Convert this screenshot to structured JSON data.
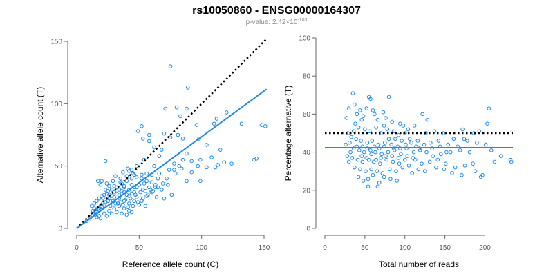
{
  "title": "rs10050860 - ENSG00000164307",
  "subtitle": {
    "prefix": "p-value: 2.42×10",
    "exponent": "-103"
  },
  "colors": {
    "points": "#1e88e5",
    "fit": "#1e88e5",
    "reference": "#000000"
  },
  "chart_data": [
    {
      "type": "scatter",
      "xlabel": "Reference allele count (C)",
      "ylabel": "Alternative allele count (T)",
      "xlim": [
        0,
        150
      ],
      "ylim": [
        0,
        150
      ],
      "xticks": [
        0,
        50,
        100,
        150
      ],
      "yticks": [
        0,
        50,
        100,
        150
      ],
      "grid": false,
      "legend": "none",
      "reference_line": {
        "style": "dotted",
        "slope": 1,
        "intercept": 0,
        "x_range": [
          0,
          152
        ]
      },
      "fit_line": {
        "style": "solid",
        "slope": 0.735,
        "intercept": 0,
        "x_range": [
          0,
          152
        ]
      },
      "points": [
        [
          75,
          130
        ],
        [
          89,
          113
        ],
        [
          80,
          97
        ],
        [
          71,
          96
        ],
        [
          88,
          96
        ],
        [
          83,
          90
        ],
        [
          120,
          93
        ],
        [
          112,
          88
        ],
        [
          110,
          84
        ],
        [
          52,
          82
        ],
        [
          58,
          75
        ],
        [
          70,
          76
        ],
        [
          81,
          75
        ],
        [
          96,
          83
        ],
        [
          132,
          84
        ],
        [
          148,
          83
        ],
        [
          151,
          82
        ],
        [
          49,
          78
        ],
        [
          53,
          72
        ],
        [
          75,
          73
        ],
        [
          85,
          72
        ],
        [
          98,
          72
        ],
        [
          104,
          67
        ],
        [
          58,
          70
        ],
        [
          62,
          65
        ],
        [
          68,
          63
        ],
        [
          88,
          60
        ],
        [
          115,
          63
        ],
        [
          108,
          57
        ],
        [
          144,
          56
        ],
        [
          142,
          55
        ],
        [
          85,
          55
        ],
        [
          92,
          54
        ],
        [
          62,
          50
        ],
        [
          78,
          52
        ],
        [
          82,
          50
        ],
        [
          99,
          55
        ],
        [
          111,
          49
        ],
        [
          113,
          51
        ],
        [
          124,
          52
        ],
        [
          74,
          47
        ],
        [
          79,
          44
        ],
        [
          72,
          40
        ],
        [
          99,
          38
        ],
        [
          88,
          38
        ],
        [
          42,
          46
        ],
        [
          40,
          42
        ],
        [
          45,
          44
        ],
        [
          52,
          40
        ],
        [
          56,
          38
        ],
        [
          60,
          43
        ],
        [
          65,
          40
        ],
        [
          35,
          37
        ],
        [
          38,
          34
        ],
        [
          44,
          35
        ],
        [
          48,
          33
        ],
        [
          53,
          31
        ],
        [
          58,
          33
        ],
        [
          63,
          35
        ],
        [
          68,
          31
        ],
        [
          23,
          54
        ],
        [
          17,
          38
        ],
        [
          19,
          35
        ],
        [
          20,
          38
        ],
        [
          25,
          30
        ],
        [
          30,
          34
        ],
        [
          32,
          28
        ],
        [
          36,
          30
        ],
        [
          40,
          27
        ],
        [
          44,
          28
        ],
        [
          48,
          25
        ],
        [
          52,
          22
        ],
        [
          56,
          26
        ],
        [
          60,
          29
        ],
        [
          64,
          25
        ],
        [
          70,
          24
        ],
        [
          76,
          27
        ],
        [
          46,
          22
        ],
        [
          50,
          19
        ],
        [
          55,
          18
        ],
        [
          42,
          20
        ],
        [
          38,
          22
        ],
        [
          34,
          24
        ],
        [
          28,
          26
        ],
        [
          25,
          22
        ],
        [
          22,
          19
        ],
        [
          20,
          17
        ],
        [
          18,
          15
        ],
        [
          16,
          13
        ],
        [
          14,
          16
        ],
        [
          12,
          18
        ],
        [
          13,
          14
        ],
        [
          15,
          11
        ],
        [
          18,
          10
        ],
        [
          22,
          12
        ],
        [
          26,
          14
        ],
        [
          30,
          16
        ],
        [
          34,
          18
        ],
        [
          38,
          16
        ],
        [
          42,
          14
        ],
        [
          27,
          18
        ],
        [
          31,
          20
        ],
        [
          35,
          21
        ],
        [
          39,
          23
        ],
        [
          43,
          24
        ],
        [
          47,
          27
        ],
        [
          51,
          29
        ],
        [
          55,
          30
        ],
        [
          59,
          31
        ],
        [
          63,
          33
        ],
        [
          21,
          24
        ],
        [
          24,
          28
        ],
        [
          28,
          31
        ],
        [
          32,
          33
        ],
        [
          36,
          36
        ],
        [
          40,
          38
        ],
        [
          44,
          40
        ],
        [
          48,
          41
        ],
        [
          52,
          43
        ],
        [
          56,
          44
        ],
        [
          11,
          9
        ],
        [
          13,
          12
        ],
        [
          15,
          14
        ],
        [
          17,
          16
        ],
        [
          19,
          18
        ],
        [
          21,
          20
        ],
        [
          23,
          21
        ],
        [
          25,
          23
        ],
        [
          29,
          22
        ],
        [
          33,
          20
        ],
        [
          37,
          19
        ],
        [
          41,
          17
        ],
        [
          45,
          18
        ],
        [
          49,
          21
        ],
        [
          53,
          24
        ],
        [
          57,
          27
        ],
        [
          61,
          30
        ],
        [
          65,
          33
        ],
        [
          69,
          36
        ],
        [
          73,
          35
        ],
        [
          20,
          26
        ],
        [
          23,
          31
        ],
        [
          26,
          27
        ],
        [
          30,
          29
        ],
        [
          34,
          31
        ],
        [
          38,
          33
        ],
        [
          42,
          31
        ],
        [
          46,
          33
        ],
        [
          50,
          35
        ],
        [
          54,
          36
        ],
        [
          14,
          20
        ],
        [
          16,
          22
        ],
        [
          18,
          24
        ],
        [
          22,
          27
        ],
        [
          26,
          24
        ],
        [
          30,
          25
        ],
        [
          34,
          27
        ],
        [
          38,
          29
        ],
        [
          42,
          26
        ],
        [
          46,
          29
        ],
        [
          16,
          9
        ],
        [
          19,
          8
        ],
        [
          24,
          10
        ],
        [
          28,
          12
        ],
        [
          32,
          13
        ],
        [
          36,
          12
        ],
        [
          40,
          11
        ],
        [
          44,
          13
        ],
        [
          10,
          7
        ],
        [
          8,
          6
        ],
        [
          60,
          37
        ],
        [
          66,
          44
        ],
        [
          78,
          47
        ],
        [
          84,
          48
        ],
        [
          92,
          45
        ],
        [
          97,
          50
        ],
        [
          104,
          49
        ],
        [
          118,
          53
        ],
        [
          66,
          58
        ],
        [
          46,
          43
        ],
        [
          37,
          45
        ],
        [
          41,
          48
        ],
        [
          35,
          40
        ],
        [
          29,
          38
        ],
        [
          26,
          34
        ],
        [
          24,
          36
        ],
        [
          31,
          42
        ],
        [
          44,
          47
        ],
        [
          48,
          50
        ],
        [
          54,
          55
        ]
      ]
    },
    {
      "type": "scatter",
      "xlabel": "Total number of reads",
      "ylabel": "Percentage alternative (T)",
      "xlim": [
        0,
        235
      ],
      "ylim": [
        0,
        100
      ],
      "xticks": [
        0,
        50,
        100,
        150,
        200
      ],
      "yticks": [
        0,
        20,
        40,
        60,
        80,
        100
      ],
      "grid": false,
      "legend": "none",
      "reference_line": {
        "style": "dotted",
        "y": 50,
        "x_range": [
          0,
          235
        ]
      },
      "fit_line": {
        "style": "solid",
        "y": 42.4,
        "x_range": [
          0,
          235
        ]
      },
      "points": [
        [
          35,
          71
        ],
        [
          55,
          69
        ],
        [
          57,
          68
        ],
        [
          80,
          69
        ],
        [
          37,
          65
        ],
        [
          44,
          62
        ],
        [
          52,
          63
        ],
        [
          60,
          62
        ],
        [
          62,
          60
        ],
        [
          73,
          61
        ],
        [
          30,
          63
        ],
        [
          40,
          60
        ],
        [
          48,
          59
        ],
        [
          66,
          57
        ],
        [
          76,
          58
        ],
        [
          84,
          56
        ],
        [
          94,
          55
        ],
        [
          98,
          54
        ],
        [
          104,
          52
        ],
        [
          112,
          54
        ],
        [
          122,
          60
        ],
        [
          128,
          57
        ],
        [
          137,
          51
        ],
        [
          148,
          50
        ],
        [
          161,
          47
        ],
        [
          172,
          52
        ],
        [
          186,
          50
        ],
        [
          193,
          51
        ],
        [
          205,
          63
        ],
        [
          203,
          55
        ],
        [
          38,
          55
        ],
        [
          42,
          53
        ],
        [
          50,
          52
        ],
        [
          56,
          51
        ],
        [
          64,
          53
        ],
        [
          70,
          50
        ],
        [
          78,
          52
        ],
        [
          86,
          51
        ],
        [
          92,
          49
        ],
        [
          100,
          50
        ],
        [
          33,
          48
        ],
        [
          39,
          47
        ],
        [
          45,
          46
        ],
        [
          53,
          45
        ],
        [
          59,
          46
        ],
        [
          67,
          44
        ],
        [
          75,
          45
        ],
        [
          83,
          44
        ],
        [
          91,
          43
        ],
        [
          101,
          44
        ],
        [
          108,
          45
        ],
        [
          116,
          46
        ],
        [
          124,
          44
        ],
        [
          132,
          45
        ],
        [
          142,
          46
        ],
        [
          154,
          44
        ],
        [
          166,
          43
        ],
        [
          178,
          46
        ],
        [
          190,
          45
        ],
        [
          201,
          44
        ],
        [
          36,
          42
        ],
        [
          43,
          41
        ],
        [
          49,
          40
        ],
        [
          57,
          41
        ],
        [
          63,
          40
        ],
        [
          71,
          39
        ],
        [
          79,
          40
        ],
        [
          87,
          41
        ],
        [
          95,
          39
        ],
        [
          103,
          38
        ],
        [
          111,
          40
        ],
        [
          119,
          41
        ],
        [
          127,
          40
        ],
        [
          135,
          38
        ],
        [
          145,
          39
        ],
        [
          157,
          40
        ],
        [
          169,
          41
        ],
        [
          181,
          40
        ],
        [
          208,
          41
        ],
        [
          220,
          38
        ],
        [
          34,
          37
        ],
        [
          41,
          36
        ],
        [
          47,
          35
        ],
        [
          55,
          36
        ],
        [
          61,
          35
        ],
        [
          69,
          34
        ],
        [
          77,
          36
        ],
        [
          85,
          35
        ],
        [
          93,
          34
        ],
        [
          105,
          33
        ],
        [
          113,
          36
        ],
        [
          121,
          34
        ],
        [
          131,
          35
        ],
        [
          141,
          36
        ],
        [
          151,
          34
        ],
        [
          163,
          32
        ],
        [
          175,
          33
        ],
        [
          188,
          30
        ],
        [
          197,
          28
        ],
        [
          232,
          36
        ],
        [
          37,
          32
        ],
        [
          44,
          31
        ],
        [
          51,
          30
        ],
        [
          58,
          31
        ],
        [
          65,
          30
        ],
        [
          72,
          29
        ],
        [
          81,
          31
        ],
        [
          89,
          30
        ],
        [
          97,
          32
        ],
        [
          109,
          29
        ],
        [
          117,
          31
        ],
        [
          125,
          30
        ],
        [
          139,
          32
        ],
        [
          149,
          31
        ],
        [
          159,
          29
        ],
        [
          171,
          28
        ],
        [
          185,
          34
        ],
        [
          195,
          27
        ],
        [
          212,
          35
        ],
        [
          233,
          35
        ],
        [
          42,
          27
        ],
        [
          48,
          25
        ],
        [
          54,
          26
        ],
        [
          60,
          28
        ],
        [
          68,
          24
        ],
        [
          74,
          27
        ],
        [
          82,
          26
        ],
        [
          90,
          25
        ],
        [
          54,
          22
        ],
        [
          66,
          22
        ],
        [
          27,
          58
        ],
        [
          29,
          50
        ],
        [
          31,
          45
        ],
        [
          32,
          40
        ],
        [
          28,
          38
        ],
        [
          26,
          44
        ],
        [
          30,
          35
        ],
        [
          36,
          51
        ],
        [
          46,
          57
        ],
        [
          74,
          54
        ],
        [
          80,
          47
        ],
        [
          88,
          47
        ],
        [
          96,
          46
        ],
        [
          106,
          47
        ],
        [
          114,
          43
        ],
        [
          126,
          50
        ],
        [
          134,
          42
        ],
        [
          144,
          43
        ],
        [
          152,
          40
        ],
        [
          174,
          47
        ],
        [
          46,
          38
        ],
        [
          52,
          37
        ],
        [
          58,
          39
        ],
        [
          64,
          36
        ],
        [
          70,
          37
        ],
        [
          76,
          38
        ],
        [
          84,
          38
        ],
        [
          92,
          37
        ],
        [
          100,
          36
        ],
        [
          110,
          37
        ],
        [
          40,
          43
        ],
        [
          47,
          43
        ],
        [
          53,
          42
        ],
        [
          62,
          43
        ],
        [
          68,
          42
        ],
        [
          74,
          43
        ],
        [
          86,
          42
        ],
        [
          94,
          42
        ],
        [
          102,
          42
        ],
        [
          118,
          42
        ]
      ]
    }
  ]
}
